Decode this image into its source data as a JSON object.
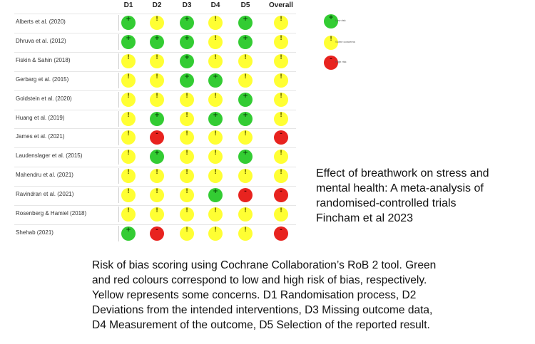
{
  "rob_table": {
    "columns": [
      "D1",
      "D2",
      "D3",
      "D4",
      "D5",
      "Overall"
    ],
    "symbols": {
      "low": "+",
      "some": "!",
      "high": "-"
    },
    "rows": [
      {
        "study": "Alberts et al. (2020)",
        "ratings": [
          "low",
          "some",
          "low",
          "some",
          "low",
          "some"
        ]
      },
      {
        "study": "Dhruva et al. (2012)",
        "ratings": [
          "low",
          "low",
          "low",
          "some",
          "low",
          "some"
        ]
      },
      {
        "study": "Fiskin & Sahin (2018)",
        "ratings": [
          "some",
          "some",
          "low",
          "some",
          "some",
          "some"
        ]
      },
      {
        "study": "Gerbarg et al. (2015)",
        "ratings": [
          "some",
          "some",
          "low",
          "low",
          "some",
          "some"
        ]
      },
      {
        "study": "Goldstein et al. (2020)",
        "ratings": [
          "some",
          "some",
          "some",
          "some",
          "low",
          "some"
        ]
      },
      {
        "study": "Huang et al. (2019)",
        "ratings": [
          "some",
          "low",
          "some",
          "low",
          "low",
          "some"
        ]
      },
      {
        "study": "James et al. (2021)",
        "ratings": [
          "some",
          "high",
          "some",
          "some",
          "some",
          "high"
        ]
      },
      {
        "study": "Laudenslager et al. (2015)",
        "ratings": [
          "some",
          "low",
          "some",
          "some",
          "low",
          "some"
        ]
      },
      {
        "study": "Mahendru et al. (2021)",
        "ratings": [
          "some",
          "some",
          "some",
          "some",
          "some",
          "some"
        ]
      },
      {
        "study": "Ravindran et al. (2021)",
        "ratings": [
          "some",
          "some",
          "some",
          "low",
          "high",
          "high"
        ]
      },
      {
        "study": "Rosenberg & Hamiel (2018)",
        "ratings": [
          "some",
          "some",
          "some",
          "some",
          "some",
          "some"
        ]
      },
      {
        "study": "Shehab (2021)",
        "ratings": [
          "low",
          "high",
          "some",
          "some",
          "some",
          "high"
        ]
      }
    ],
    "legend": [
      {
        "level": "low",
        "label": "Low risk"
      },
      {
        "level": "some",
        "label": "Some concerns"
      },
      {
        "level": "high",
        "label": "High risk"
      }
    ],
    "colors": {
      "low": "#33cc33",
      "some": "#ffff33",
      "high": "#e8231f"
    }
  },
  "citation": {
    "line1": "Effect of breathwork on stress and",
    "line2": "mental health: A meta-analysis of",
    "line3": "randomised-controlled trials",
    "line4": "Fincham et al 2023"
  },
  "caption": {
    "line1": "Risk of bias scoring using Cochrane Collaboration’s RoB 2 tool. Green",
    "line2": "and red colours correspond to low and high risk of bias, respectively.",
    "line3": "Yellow represents some concerns. D1 Randomisation process, D2",
    "line4": "Deviations from the intended interventions, D3 Missing outcome data,",
    "line5": "D4 Measurement of the outcome, D5 Selection of the reported result."
  }
}
